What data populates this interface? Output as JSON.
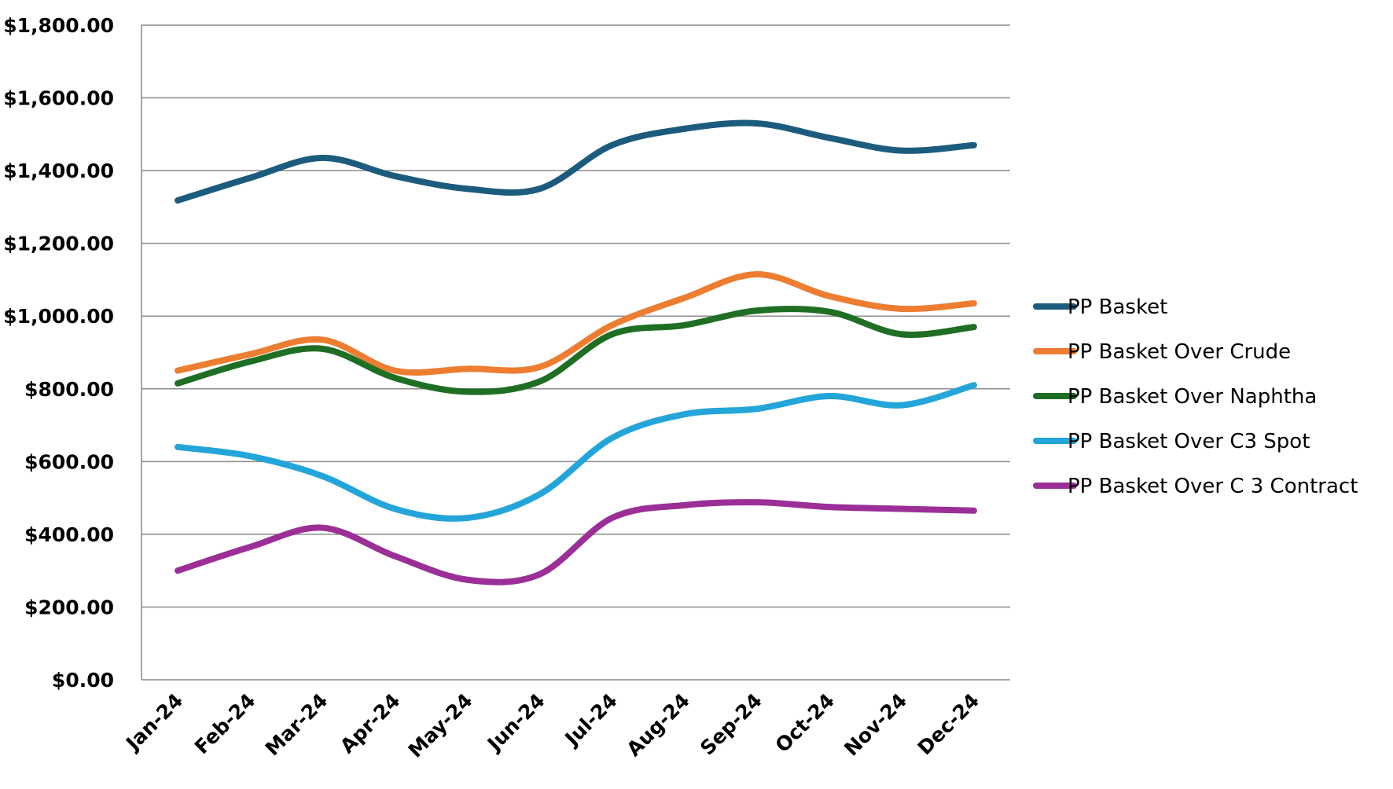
{
  "chart_data": {
    "type": "line",
    "title": "",
    "xlabel": "",
    "ylabel": "",
    "categories": [
      "Jan-24",
      "Feb-24",
      "Mar-24",
      "Apr-24",
      "May-24",
      "Jun-24",
      "Jul-24",
      "Aug-24",
      "Sep-24",
      "Oct-24",
      "Nov-24",
      "Dec-24"
    ],
    "y_ticks": [
      "$0.00",
      "$200.00",
      "$400.00",
      "$600.00",
      "$800.00",
      "$1,000.00",
      "$1,200.00",
      "$1,400.00",
      "$1,600.00",
      "$1,800.00"
    ],
    "ylim": [
      0,
      1800
    ],
    "grid": true,
    "legend_position": "right",
    "series": [
      {
        "name": "PP Basket",
        "color": "#1b5c7e",
        "values": [
          1318,
          1380,
          1435,
          1385,
          1350,
          1350,
          1470,
          1515,
          1530,
          1490,
          1455,
          1470
        ]
      },
      {
        "name": "PP Basket Over Crude",
        "color": "#ed7d31",
        "values": [
          850,
          895,
          935,
          850,
          855,
          860,
          975,
          1050,
          1115,
          1055,
          1020,
          1035
        ]
      },
      {
        "name": "PP Basket Over Naphtha",
        "color": "#1e6e24",
        "values": [
          815,
          875,
          910,
          830,
          792,
          820,
          950,
          975,
          1015,
          1012,
          950,
          970
        ]
      },
      {
        "name": "PP Basket Over C3 Spot",
        "color": "#23a5da",
        "values": [
          640,
          615,
          560,
          470,
          445,
          510,
          665,
          730,
          745,
          780,
          755,
          810
        ]
      },
      {
        "name": "PP Basket Over C 3 Contract",
        "color": "#9c2f97",
        "values": [
          300,
          365,
          418,
          340,
          275,
          290,
          445,
          480,
          488,
          475,
          470,
          465
        ]
      }
    ]
  }
}
